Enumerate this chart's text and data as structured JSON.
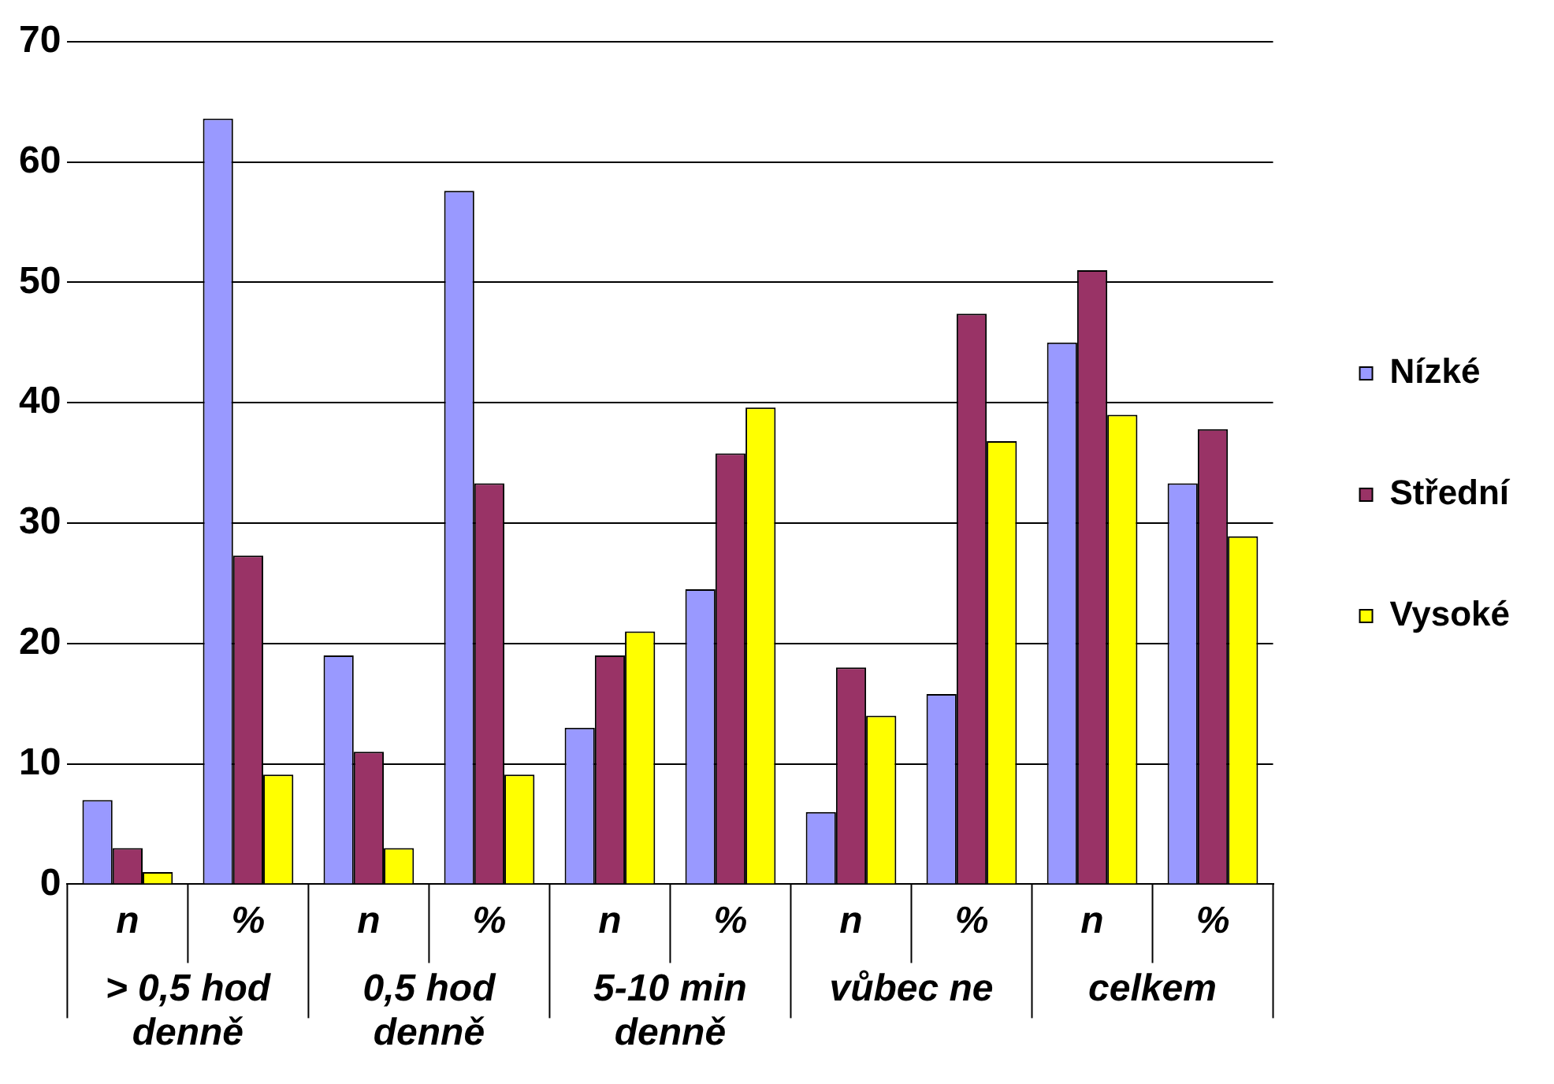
{
  "chart_data": {
    "type": "bar",
    "categories": [
      "n",
      "%",
      "n",
      "%",
      "n",
      "%",
      "n",
      "%",
      "n",
      "%"
    ],
    "series": [
      {
        "name": "Nízké",
        "color": "#9999ff",
        "values": [
          7,
          63.6,
          19,
          57.6,
          13,
          24.5,
          6,
          15.8,
          45,
          33.3
        ]
      },
      {
        "name": "Střední",
        "color": "#993366",
        "values": [
          3,
          27.3,
          11,
          33.3,
          19,
          35.8,
          18,
          47.4,
          51,
          37.8
        ]
      },
      {
        "name": "Vysoké",
        "color": "#ffff00",
        "values": [
          1,
          9.1,
          3,
          9.1,
          21,
          39.6,
          14,
          36.8,
          39,
          28.9
        ]
      }
    ],
    "annotations": [
      "> 0,5 hod denně",
      "0,5 hod denně",
      "5-10 min denně",
      "vůbec ne",
      "celkem"
    ],
    "ylim": [
      0,
      70
    ],
    "yticks": [
      0,
      10,
      20,
      30,
      40,
      50,
      60,
      70
    ],
    "grid": "y",
    "legend": "right"
  }
}
